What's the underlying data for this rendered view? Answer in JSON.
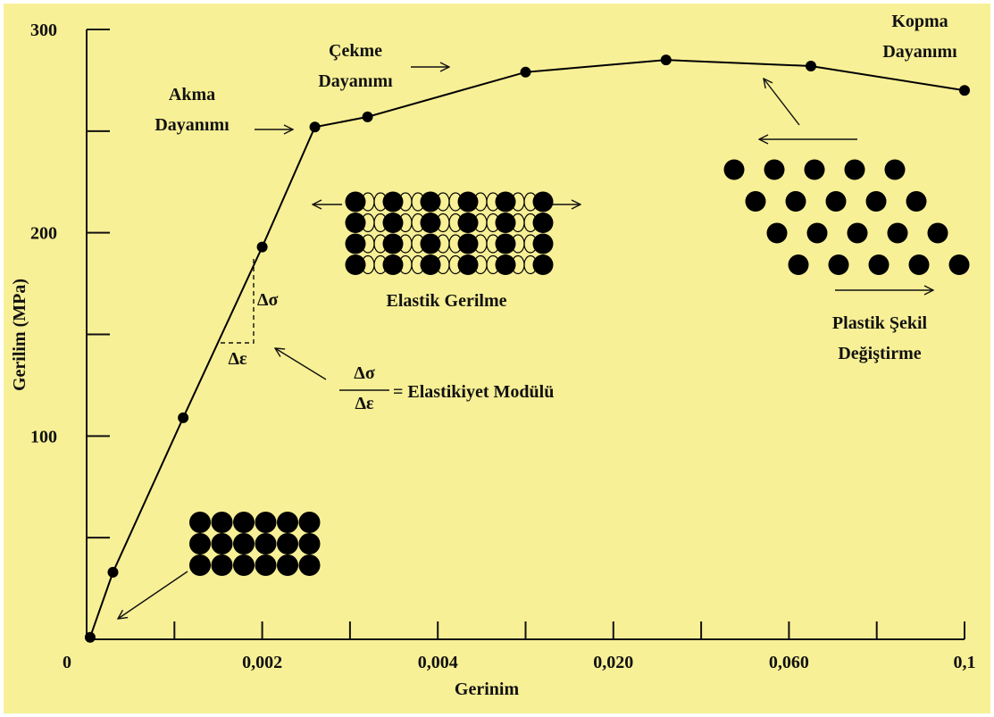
{
  "chart_data": {
    "type": "line",
    "x_axis_label": "Gerinim",
    "y_axis_label": "Gerilim (MPa)",
    "x": [
      4e-05,
      0.0003,
      0.0011,
      0.002,
      0.0026,
      0.0032,
      0.012,
      0.032,
      0.065,
      0.1
    ],
    "series": [
      {
        "color": "#000000",
        "values": [
          1,
          33,
          109,
          193,
          252,
          257,
          279,
          285,
          282,
          270
        ]
      }
    ],
    "x_scale": "tick-spaced",
    "xlim": [
      0,
      0.1
    ],
    "xticks": [
      {
        "value": 0,
        "label": "0"
      },
      {
        "value": 0.002,
        "label": "0,002"
      },
      {
        "value": 0.004,
        "label": "0,004"
      },
      {
        "value": 0.02,
        "label": "0,020"
      },
      {
        "value": 0.06,
        "label": "0,060"
      },
      {
        "value": 0.1,
        "label": "0,1"
      }
    ],
    "xminorticks": [
      0.001,
      0.003,
      0.012,
      0.04,
      0.08
    ],
    "ylim": [
      0,
      300
    ],
    "yticks": [
      100,
      200,
      300
    ],
    "yminorticks": [
      50,
      150,
      250
    ],
    "annotations": [
      {
        "lines": [
          "Akma",
          "Dayanımı"
        ]
      },
      {
        "lines": [
          "Çekme",
          "Dayanımı"
        ]
      },
      {
        "lines": [
          "Kopma",
          "Dayanımı"
        ]
      },
      {
        "lines": [
          "Elastik Gerilme"
        ]
      },
      {
        "lines": [
          "Plastik Şekil",
          "Değiştirme"
        ]
      },
      {
        "lines": [
          "Δσ"
        ]
      },
      {
        "lines": [
          "Δε"
        ]
      }
    ],
    "formula": {
      "numerator": "Δσ",
      "denominator": "Δε",
      "text": "= Elastikiyet Modülü"
    }
  }
}
